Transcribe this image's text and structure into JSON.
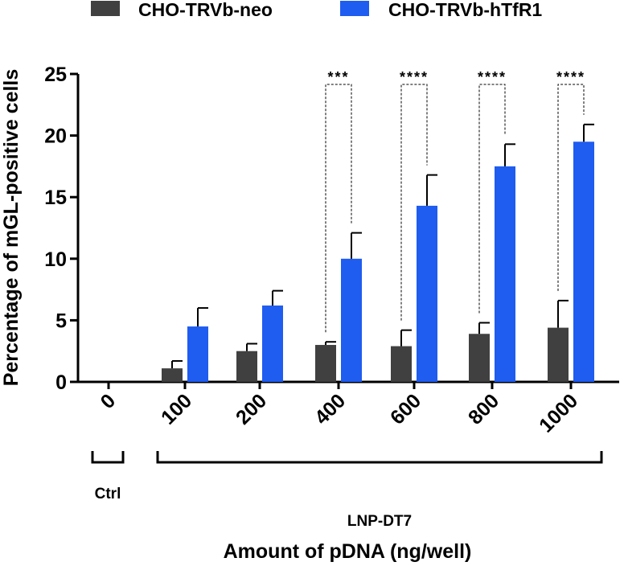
{
  "chart_data": {
    "type": "bar",
    "title": "",
    "xlabel": "Amount of pDNA (ng/well)",
    "ylabel": "Percentage of mGL-positive cells",
    "ylim": [
      0,
      25
    ],
    "yticks": [
      0,
      5,
      10,
      15,
      20,
      25
    ],
    "categories": [
      "0",
      "100",
      "200",
      "400",
      "600",
      "800",
      "1000"
    ],
    "series": [
      {
        "name": "CHO-TRVb-neo",
        "color": "#404040",
        "values": [
          0,
          1.1,
          2.5,
          3.0,
          2.9,
          3.9,
          4.4
        ],
        "errors": [
          0,
          0.6,
          0.6,
          0.25,
          1.3,
          0.9,
          2.2
        ]
      },
      {
        "name": "CHO-TRVb-hTfR1",
        "color": "#1f5cf0",
        "values": [
          0,
          4.5,
          6.2,
          10.0,
          14.3,
          17.5,
          19.5
        ],
        "errors": [
          0,
          1.5,
          1.2,
          2.1,
          2.5,
          1.8,
          1.4
        ]
      }
    ],
    "groups": [
      {
        "label": "Ctrl",
        "categories": [
          "0"
        ]
      },
      {
        "label": "LNP-DT7",
        "categories": [
          "100",
          "200",
          "400",
          "600",
          "800",
          "1000"
        ]
      }
    ],
    "significance": [
      {
        "category": "400",
        "label": "***"
      },
      {
        "category": "600",
        "label": "****"
      },
      {
        "category": "800",
        "label": "****"
      },
      {
        "category": "1000",
        "label": "****"
      }
    ],
    "legend_position": "top",
    "grid": false
  }
}
